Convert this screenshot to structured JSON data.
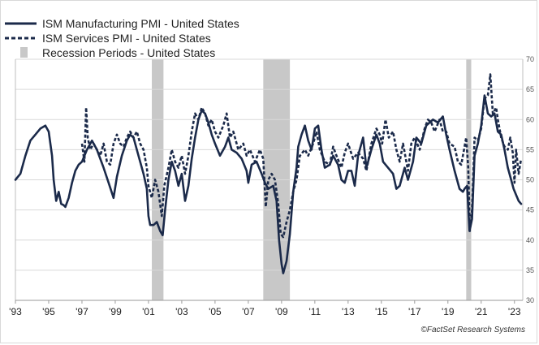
{
  "chart_data": {
    "type": "line",
    "title": "",
    "xlabel": "",
    "ylabel": "",
    "xlim": [
      1993.0,
      2023.5
    ],
    "ylim": [
      30,
      70
    ],
    "y_ticks": [
      30,
      35,
      40,
      45,
      50,
      55,
      60,
      65,
      70
    ],
    "x_ticks": [
      {
        "x": 1993,
        "label": "'93"
      },
      {
        "x": 1995,
        "label": "'95"
      },
      {
        "x": 1997,
        "label": "'97"
      },
      {
        "x": 1999,
        "label": "'99"
      },
      {
        "x": 2001,
        "label": "'01"
      },
      {
        "x": 2003,
        "label": "'03"
      },
      {
        "x": 2005,
        "label": "'05"
      },
      {
        "x": 2007,
        "label": "'07"
      },
      {
        "x": 2009,
        "label": "'09"
      },
      {
        "x": 2011,
        "label": "'11"
      },
      {
        "x": 2013,
        "label": "'13"
      },
      {
        "x": 2015,
        "label": "'15"
      },
      {
        "x": 2017,
        "label": "'17"
      },
      {
        "x": 2019,
        "label": "'19"
      },
      {
        "x": 2021,
        "label": "'21"
      },
      {
        "x": 2023,
        "label": "'23"
      }
    ],
    "grid": "y-major",
    "y_axis_side": "right",
    "legend_position": "top-left",
    "recessions": [
      {
        "start": 2001.2,
        "end": 2001.9
      },
      {
        "start": 2007.9,
        "end": 2009.5
      },
      {
        "start": 2020.1,
        "end": 2020.4
      }
    ],
    "series": [
      {
        "name": "ISM Manufacturing PMI - United States",
        "style": "solid",
        "color": "#1b2a4a",
        "points": [
          [
            1993.0,
            50.0
          ],
          [
            1993.3,
            51.0
          ],
          [
            1993.6,
            54.0
          ],
          [
            1993.9,
            56.5
          ],
          [
            1994.2,
            57.5
          ],
          [
            1994.5,
            58.5
          ],
          [
            1994.8,
            59.0
          ],
          [
            1995.0,
            58.0
          ],
          [
            1995.2,
            54.0
          ],
          [
            1995.3,
            50.0
          ],
          [
            1995.45,
            46.5
          ],
          [
            1995.6,
            48.0
          ],
          [
            1995.75,
            46.0
          ],
          [
            1995.9,
            45.8
          ],
          [
            1996.0,
            45.5
          ],
          [
            1996.2,
            47.0
          ],
          [
            1996.4,
            49.5
          ],
          [
            1996.6,
            51.5
          ],
          [
            1996.8,
            52.5
          ],
          [
            1997.0,
            53.0
          ],
          [
            1997.3,
            55.0
          ],
          [
            1997.6,
            56.5
          ],
          [
            1997.9,
            55.0
          ],
          [
            1998.1,
            53.5
          ],
          [
            1998.3,
            52.0
          ],
          [
            1998.6,
            49.5
          ],
          [
            1998.9,
            47.0
          ],
          [
            1999.1,
            50.5
          ],
          [
            1999.4,
            54.0
          ],
          [
            1999.7,
            56.5
          ],
          [
            1999.9,
            57.5
          ],
          [
            2000.1,
            57.0
          ],
          [
            2000.4,
            54.0
          ],
          [
            2000.7,
            51.0
          ],
          [
            2000.9,
            48.5
          ],
          [
            2001.0,
            44.0
          ],
          [
            2001.1,
            42.5
          ],
          [
            2001.3,
            42.5
          ],
          [
            2001.5,
            43.0
          ],
          [
            2001.7,
            41.5
          ],
          [
            2001.85,
            40.8
          ],
          [
            2002.0,
            45.0
          ],
          [
            2002.2,
            50.0
          ],
          [
            2002.4,
            53.0
          ],
          [
            2002.6,
            51.5
          ],
          [
            2002.8,
            49.0
          ],
          [
            2003.0,
            51.0
          ],
          [
            2003.2,
            46.5
          ],
          [
            2003.4,
            49.0
          ],
          [
            2003.6,
            53.5
          ],
          [
            2003.8,
            57.0
          ],
          [
            2004.0,
            60.0
          ],
          [
            2004.2,
            61.5
          ],
          [
            2004.4,
            61.0
          ],
          [
            2004.6,
            59.5
          ],
          [
            2004.8,
            57.5
          ],
          [
            2005.0,
            56.0
          ],
          [
            2005.3,
            54.0
          ],
          [
            2005.6,
            55.5
          ],
          [
            2005.8,
            57.0
          ],
          [
            2006.0,
            55.0
          ],
          [
            2006.3,
            54.5
          ],
          [
            2006.6,
            53.5
          ],
          [
            2006.9,
            51.5
          ],
          [
            2007.0,
            49.5
          ],
          [
            2007.2,
            52.5
          ],
          [
            2007.5,
            53.0
          ],
          [
            2007.8,
            51.0
          ],
          [
            2008.0,
            49.5
          ],
          [
            2008.2,
            48.5
          ],
          [
            2008.5,
            49.0
          ],
          [
            2008.7,
            46.5
          ],
          [
            2008.85,
            40.0
          ],
          [
            2009.0,
            36.0
          ],
          [
            2009.1,
            34.5
          ],
          [
            2009.3,
            36.5
          ],
          [
            2009.5,
            41.0
          ],
          [
            2009.7,
            48.0
          ],
          [
            2009.9,
            52.0
          ],
          [
            2010.0,
            55.5
          ],
          [
            2010.2,
            57.5
          ],
          [
            2010.4,
            59.0
          ],
          [
            2010.6,
            56.5
          ],
          [
            2010.8,
            55.0
          ],
          [
            2011.0,
            58.5
          ],
          [
            2011.2,
            59.0
          ],
          [
            2011.4,
            55.0
          ],
          [
            2011.6,
            52.0
          ],
          [
            2011.9,
            52.5
          ],
          [
            2012.1,
            54.0
          ],
          [
            2012.4,
            52.5
          ],
          [
            2012.6,
            50.0
          ],
          [
            2012.8,
            49.5
          ],
          [
            2013.0,
            51.5
          ],
          [
            2013.2,
            51.5
          ],
          [
            2013.4,
            49.0
          ],
          [
            2013.6,
            54.0
          ],
          [
            2013.9,
            57.0
          ],
          [
            2014.1,
            52.0
          ],
          [
            2014.4,
            55.0
          ],
          [
            2014.7,
            57.5
          ],
          [
            2014.9,
            56.0
          ],
          [
            2015.1,
            53.0
          ],
          [
            2015.4,
            52.0
          ],
          [
            2015.7,
            51.0
          ],
          [
            2015.9,
            48.5
          ],
          [
            2016.1,
            49.0
          ],
          [
            2016.4,
            52.0
          ],
          [
            2016.6,
            50.0
          ],
          [
            2016.9,
            53.0
          ],
          [
            2017.1,
            57.0
          ],
          [
            2017.4,
            56.0
          ],
          [
            2017.7,
            59.0
          ],
          [
            2017.9,
            59.5
          ],
          [
            2018.1,
            60.0
          ],
          [
            2018.4,
            59.5
          ],
          [
            2018.7,
            60.5
          ],
          [
            2018.9,
            57.5
          ],
          [
            2019.1,
            55.0
          ],
          [
            2019.4,
            51.5
          ],
          [
            2019.7,
            48.5
          ],
          [
            2019.9,
            48.0
          ],
          [
            2020.0,
            48.5
          ],
          [
            2020.15,
            49.0
          ],
          [
            2020.3,
            41.5
          ],
          [
            2020.45,
            43.5
          ],
          [
            2020.6,
            54.0
          ],
          [
            2020.8,
            56.0
          ],
          [
            2021.0,
            59.0
          ],
          [
            2021.2,
            64.0
          ],
          [
            2021.4,
            61.0
          ],
          [
            2021.6,
            60.5
          ],
          [
            2021.8,
            61.0
          ],
          [
            2022.0,
            58.0
          ],
          [
            2022.2,
            57.5
          ],
          [
            2022.4,
            55.0
          ],
          [
            2022.6,
            52.0
          ],
          [
            2022.8,
            50.0
          ],
          [
            2022.95,
            48.5
          ],
          [
            2023.1,
            47.5
          ],
          [
            2023.25,
            46.5
          ],
          [
            2023.4,
            46.0
          ]
        ]
      },
      {
        "name": "ISM Services PMI - United States",
        "style": "dashed",
        "color": "#1b2a4a",
        "points": [
          [
            1997.0,
            56.0
          ],
          [
            1997.15,
            53.0
          ],
          [
            1997.25,
            62.0
          ],
          [
            1997.35,
            57.0
          ],
          [
            1997.5,
            55.0
          ],
          [
            1997.7,
            56.0
          ],
          [
            1997.9,
            55.0
          ],
          [
            1998.1,
            54.0
          ],
          [
            1998.3,
            56.0
          ],
          [
            1998.5,
            53.0
          ],
          [
            1998.7,
            52.5
          ],
          [
            1998.9,
            56.0
          ],
          [
            1999.1,
            57.5
          ],
          [
            1999.3,
            56.0
          ],
          [
            1999.5,
            55.5
          ],
          [
            1999.7,
            57.0
          ],
          [
            1999.9,
            58.0
          ],
          [
            2000.1,
            57.0
          ],
          [
            2000.3,
            58.0
          ],
          [
            2000.5,
            56.0
          ],
          [
            2000.7,
            55.0
          ],
          [
            2000.9,
            52.0
          ],
          [
            2001.0,
            49.0
          ],
          [
            2001.2,
            47.0
          ],
          [
            2001.4,
            50.0
          ],
          [
            2001.6,
            48.0
          ],
          [
            2001.8,
            44.0
          ],
          [
            2001.95,
            49.0
          ],
          [
            2002.2,
            52.0
          ],
          [
            2002.4,
            55.0
          ],
          [
            2002.6,
            53.0
          ],
          [
            2002.8,
            52.0
          ],
          [
            2003.0,
            54.0
          ],
          [
            2003.2,
            51.0
          ],
          [
            2003.4,
            54.0
          ],
          [
            2003.6,
            58.0
          ],
          [
            2003.8,
            61.0
          ],
          [
            2004.0,
            60.0
          ],
          [
            2004.2,
            62.0
          ],
          [
            2004.4,
            61.0
          ],
          [
            2004.6,
            59.0
          ],
          [
            2004.8,
            60.0
          ],
          [
            2005.0,
            58.0
          ],
          [
            2005.2,
            57.0
          ],
          [
            2005.5,
            59.0
          ],
          [
            2005.7,
            61.0
          ],
          [
            2005.9,
            57.0
          ],
          [
            2006.1,
            58.0
          ],
          [
            2006.4,
            55.0
          ],
          [
            2006.7,
            56.0
          ],
          [
            2006.9,
            54.0
          ],
          [
            2007.1,
            55.0
          ],
          [
            2007.4,
            53.0
          ],
          [
            2007.7,
            55.0
          ],
          [
            2007.9,
            53.5
          ],
          [
            2008.05,
            45.5
          ],
          [
            2008.2,
            50.0
          ],
          [
            2008.4,
            51.0
          ],
          [
            2008.6,
            50.0
          ],
          [
            2008.8,
            46.0
          ],
          [
            2008.95,
            41.0
          ],
          [
            2009.1,
            40.5
          ],
          [
            2009.3,
            43.0
          ],
          [
            2009.5,
            45.0
          ],
          [
            2009.7,
            48.0
          ],
          [
            2009.9,
            50.0
          ],
          [
            2010.1,
            54.0
          ],
          [
            2010.4,
            55.0
          ],
          [
            2010.6,
            54.0
          ],
          [
            2010.9,
            56.0
          ],
          [
            2011.1,
            58.0
          ],
          [
            2011.3,
            55.0
          ],
          [
            2011.6,
            53.0
          ],
          [
            2011.9,
            52.5
          ],
          [
            2012.1,
            55.5
          ],
          [
            2012.3,
            54.0
          ],
          [
            2012.6,
            52.0
          ],
          [
            2012.8,
            54.5
          ],
          [
            2013.0,
            56.0
          ],
          [
            2013.3,
            53.5
          ],
          [
            2013.6,
            54.5
          ],
          [
            2013.9,
            53.5
          ],
          [
            2014.1,
            51.5
          ],
          [
            2014.4,
            56.0
          ],
          [
            2014.7,
            58.5
          ],
          [
            2014.9,
            57.5
          ],
          [
            2015.05,
            56.0
          ],
          [
            2015.25,
            60.0
          ],
          [
            2015.45,
            57.0
          ],
          [
            2015.7,
            58.0
          ],
          [
            2015.9,
            55.0
          ],
          [
            2016.1,
            53.0
          ],
          [
            2016.3,
            56.0
          ],
          [
            2016.6,
            51.5
          ],
          [
            2016.8,
            56.0
          ],
          [
            2017.0,
            57.0
          ],
          [
            2017.3,
            55.0
          ],
          [
            2017.6,
            58.5
          ],
          [
            2017.8,
            60.0
          ],
          [
            2018.0,
            59.5
          ],
          [
            2018.2,
            58.0
          ],
          [
            2018.5,
            60.0
          ],
          [
            2018.7,
            58.0
          ],
          [
            2018.9,
            58.0
          ],
          [
            2019.1,
            56.0
          ],
          [
            2019.4,
            55.5
          ],
          [
            2019.6,
            53.0
          ],
          [
            2019.8,
            52.5
          ],
          [
            2020.0,
            55.5
          ],
          [
            2020.1,
            57.0
          ],
          [
            2020.22,
            52.0
          ],
          [
            2020.32,
            41.5
          ],
          [
            2020.45,
            45.0
          ],
          [
            2020.6,
            57.0
          ],
          [
            2020.8,
            56.5
          ],
          [
            2021.0,
            58.5
          ],
          [
            2021.2,
            63.5
          ],
          [
            2021.4,
            64.0
          ],
          [
            2021.55,
            67.5
          ],
          [
            2021.7,
            61.0
          ],
          [
            2021.9,
            62.0
          ],
          [
            2022.0,
            60.0
          ],
          [
            2022.2,
            57.0
          ],
          [
            2022.4,
            55.5
          ],
          [
            2022.6,
            55.0
          ],
          [
            2022.75,
            57.0
          ],
          [
            2022.9,
            54.5
          ],
          [
            2023.0,
            49.5
          ],
          [
            2023.1,
            55.0
          ],
          [
            2023.25,
            51.0
          ],
          [
            2023.4,
            53.5
          ]
        ]
      }
    ]
  },
  "legend": [
    {
      "label": "ISM Manufacturing PMI - United States",
      "style": "solid"
    },
    {
      "label": "ISM Services PMI - United States",
      "style": "dashed"
    },
    {
      "label": "Recession Periods - United States",
      "style": "box"
    }
  ],
  "credit": "©FactSet Research Systems",
  "colors": {
    "line": "#1b2a4a",
    "recession": "#c8c8c8",
    "grid": "#d9d9d9"
  }
}
